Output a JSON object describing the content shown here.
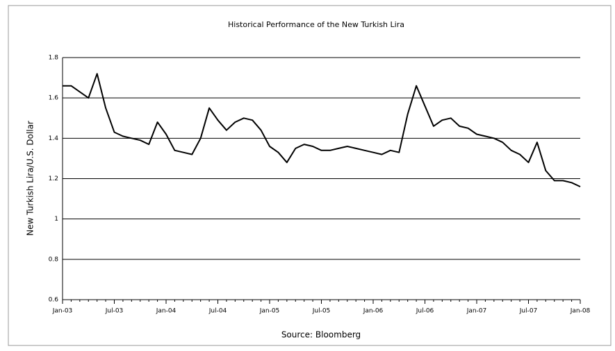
{
  "chart_data": {
    "type": "line",
    "title": "Historical Performance of the New Turkish Lira",
    "ylabel": "New Turkish Lira/U.S. Dollar",
    "xlabel": "Source: Bloomberg",
    "x": [
      "Jan-03",
      "Feb-03",
      "Mar-03",
      "Apr-03",
      "May-03",
      "Jun-03",
      "Jul-03",
      "Aug-03",
      "Sep-03",
      "Oct-03",
      "Nov-03",
      "Dec-03",
      "Jan-04",
      "Feb-04",
      "Mar-04",
      "Apr-04",
      "May-04",
      "Jun-04",
      "Jul-04",
      "Aug-04",
      "Sep-04",
      "Oct-04",
      "Nov-04",
      "Dec-04",
      "Jan-05",
      "Feb-05",
      "Mar-05",
      "Apr-05",
      "May-05",
      "Jun-05",
      "Jul-05",
      "Aug-05",
      "Sep-05",
      "Oct-05",
      "Nov-05",
      "Dec-05",
      "Jan-06",
      "Feb-06",
      "Mar-06",
      "Apr-06",
      "May-06",
      "Jun-06",
      "Jul-06",
      "Aug-06",
      "Sep-06",
      "Oct-06",
      "Nov-06",
      "Dec-06",
      "Jan-07",
      "Feb-07",
      "Mar-07",
      "Apr-07",
      "May-07",
      "Jun-07",
      "Jul-07",
      "Aug-07",
      "Sep-07",
      "Oct-07",
      "Nov-07",
      "Dec-07",
      "Jan-08"
    ],
    "values": [
      1.66,
      1.66,
      1.63,
      1.6,
      1.72,
      1.55,
      1.43,
      1.41,
      1.4,
      1.39,
      1.37,
      1.48,
      1.42,
      1.34,
      1.33,
      1.32,
      1.4,
      1.55,
      1.49,
      1.44,
      1.48,
      1.5,
      1.49,
      1.44,
      1.36,
      1.33,
      1.28,
      1.35,
      1.37,
      1.36,
      1.34,
      1.34,
      1.35,
      1.36,
      1.35,
      1.34,
      1.33,
      1.32,
      1.34,
      1.33,
      1.52,
      1.66,
      1.56,
      1.46,
      1.49,
      1.5,
      1.46,
      1.45,
      1.42,
      1.41,
      1.4,
      1.38,
      1.34,
      1.32,
      1.28,
      1.38,
      1.24,
      1.19,
      1.19,
      1.18,
      1.16
    ],
    "color": "#000000",
    "xticks": [
      "Jan-03",
      "Jul-03",
      "Jan-04",
      "Jul-04",
      "Jan-05",
      "Jul-05",
      "Jan-06",
      "Jul-06",
      "Jan-07",
      "Jul-07",
      "Jan-08"
    ],
    "ylim": [
      0.6,
      1.8
    ],
    "yticks": [
      0.6,
      0.8,
      1,
      1.2,
      1.4,
      1.6,
      1.8
    ],
    "grid": true
  }
}
